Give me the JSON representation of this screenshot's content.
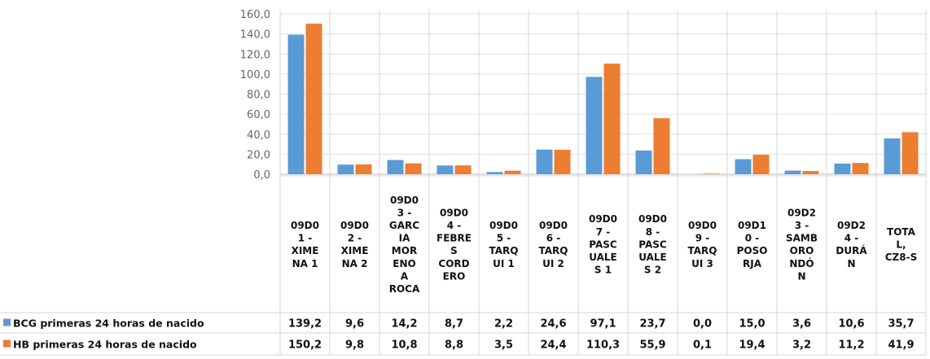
{
  "chart_data": {
    "type": "bar",
    "categories": [
      "09D01 - XIMENA 1",
      "09D02 - XIMENA 2",
      "09D03 - GARCIA MORENO A ROCA",
      "09D04 - FEBRES CORDERO",
      "09D05 - TARQUI 1",
      "09D06 - TARQUI 2",
      "09D07 - PASCUALES 1",
      "09D08 - PASCUALES 2",
      "09D09 - TARQUI 3",
      "09D10 - POSORJA",
      "09D23 - SAMBORONDÓN",
      "09D24 - DURÁN",
      "TOTAL, CZ8-S"
    ],
    "category_lines": [
      [
        "09D0",
        "1 -",
        "XIME",
        "NA 1"
      ],
      [
        "09D0",
        "2 -",
        "XIME",
        "NA 2"
      ],
      [
        "09D0",
        "3 -",
        "GARC",
        "IA",
        "MOR",
        "ENO",
        "A",
        "ROCA"
      ],
      [
        "09D0",
        "4 -",
        "FEBRE",
        "S",
        "CORD",
        "ERO"
      ],
      [
        "09D0",
        "5 -",
        "TARQ",
        "UI 1"
      ],
      [
        "09D0",
        "6 -",
        "TARQ",
        "UI 2"
      ],
      [
        "09D0",
        "7 -",
        "PASC",
        "UALE",
        "S 1"
      ],
      [
        "09D0",
        "8 -",
        "PASC",
        "UALE",
        "S 2"
      ],
      [
        "09D0",
        "9 -",
        "TARQ",
        "UI 3"
      ],
      [
        "09D1",
        "0 -",
        "POSO",
        "RJA"
      ],
      [
        "09D2",
        "3 -",
        "SAMB",
        "ORO",
        "NDÓ",
        "N"
      ],
      [
        "09D2",
        "4 -",
        "DURÁ",
        "N"
      ],
      [
        "TOTA",
        "L,",
        "CZ8-S"
      ]
    ],
    "series": [
      {
        "name": "BCG primeras 24 horas de nacido",
        "color": "#5b9bd5",
        "values": [
          139.2,
          9.6,
          14.2,
          8.7,
          2.2,
          24.6,
          97.1,
          23.7,
          0.0,
          15.0,
          3.6,
          10.6,
          35.7
        ],
        "labels": [
          "139,2",
          "9,6",
          "14,2",
          "8,7",
          "2,2",
          "24,6",
          "97,1",
          "23,7",
          "0,0",
          "15,0",
          "3,6",
          "10,6",
          "35,7"
        ]
      },
      {
        "name": "HB primeras 24 horas de nacido",
        "color": "#ed7d31",
        "values": [
          150.2,
          9.8,
          10.8,
          8.8,
          3.5,
          24.4,
          110.3,
          55.9,
          0.1,
          19.4,
          3.2,
          11.2,
          41.9
        ],
        "labels": [
          "150,2",
          "9,8",
          "10,8",
          "8,8",
          "3,5",
          "24,4",
          "110,3",
          "55,9",
          "0,1",
          "19,4",
          "3,2",
          "11,2",
          "41,9"
        ]
      }
    ],
    "y_ticks": [
      "0,0",
      "20,0",
      "40,0",
      "60,0",
      "80,0",
      "100,0",
      "120,0",
      "140,0",
      "160,0"
    ],
    "ylim": [
      0,
      160
    ],
    "grid": true,
    "legend": "data-table-left"
  }
}
